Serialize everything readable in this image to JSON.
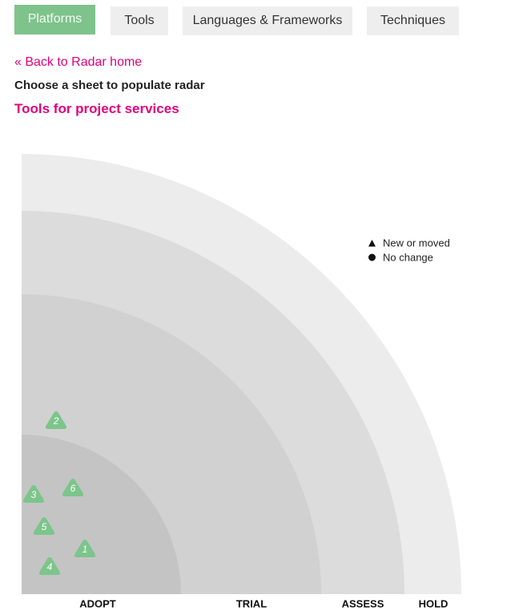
{
  "tabs": [
    {
      "label": "Platforms",
      "active": true
    },
    {
      "label": "Tools",
      "active": false
    },
    {
      "label": "Languages & Frameworks",
      "active": false
    },
    {
      "label": "Techniques",
      "active": false
    }
  ],
  "back_link": "« Back to Radar home",
  "instruction": "Choose a sheet to populate radar",
  "sheet_title": "Tools for project services",
  "legend": {
    "new_or_moved": "New or moved",
    "no_change": "No change"
  },
  "rings": [
    {
      "name": "ADOPT",
      "color": "#c4c4c4"
    },
    {
      "name": "TRIAL",
      "color": "#d1d1d1"
    },
    {
      "name": "ASSESS",
      "color": "#dcdcdc"
    },
    {
      "name": "HOLD",
      "color": "#ececec"
    }
  ],
  "blips": [
    {
      "number": "1",
      "ring": "ADOPT",
      "shape": "triangle"
    },
    {
      "number": "2",
      "ring": "TRIAL",
      "shape": "triangle"
    },
    {
      "number": "3",
      "ring": "ADOPT",
      "shape": "triangle"
    },
    {
      "number": "4",
      "ring": "ADOPT",
      "shape": "triangle"
    },
    {
      "number": "5",
      "ring": "ADOPT",
      "shape": "triangle"
    },
    {
      "number": "6",
      "ring": "ADOPT",
      "shape": "triangle"
    }
  ],
  "colors": {
    "accent": "#e0007b",
    "active_tab": "#7ec38b",
    "blip": "#7cc58b"
  }
}
